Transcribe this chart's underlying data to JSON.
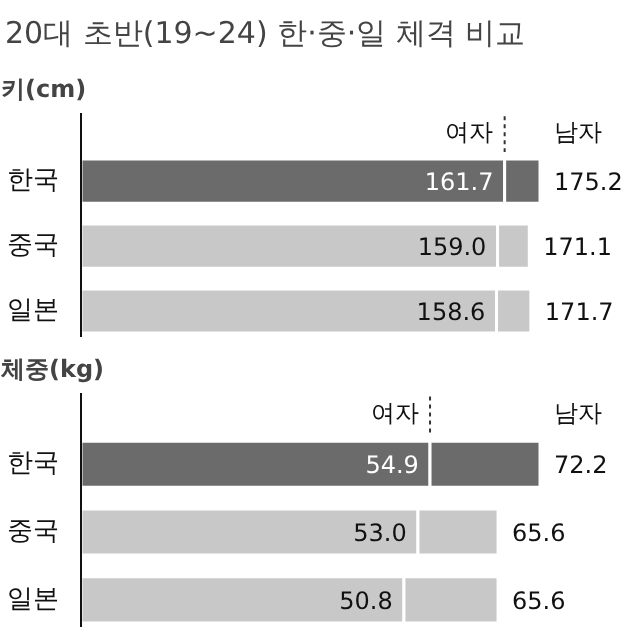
{
  "chart_data": [
    {
      "type": "bar",
      "orientation": "horizontal",
      "stacked": true,
      "title": "20대 초반(19~24) 한·중·일 체격 비교",
      "subtitle": "키(cm)",
      "categories": [
        "한국",
        "중국",
        "일본"
      ],
      "tick_labels": "y",
      "grid": false,
      "series": [
        {
          "name": "여자",
          "colors": [
            "#6b6b6b",
            "#c8c8c8",
            "#c8c8c8"
          ],
          "values": [
            161.7,
            159.0,
            158.6
          ],
          "value_labels": [
            "161.7",
            "159.0",
            "158.6"
          ]
        },
        {
          "name": "남자",
          "colors": [
            "#6b6b6b",
            "#c8c8c8",
            "#c8c8c8"
          ],
          "values": [
            13.5,
            12.1,
            13.1
          ]
        }
      ],
      "annotations": [
        {
          "text": "175.2",
          "x": 175.2,
          "y": "한국"
        },
        {
          "text": "171.1",
          "x": 171.1,
          "y": "중국"
        },
        {
          "text": "171.7",
          "x": 171.7,
          "y": "일본"
        }
      ]
    },
    {
      "type": "bar",
      "orientation": "horizontal",
      "stacked": true,
      "title": "체중(kg)",
      "categories": [
        "한국",
        "중국",
        "일본"
      ],
      "tick_labels": "y",
      "grid": false,
      "series": [
        {
          "name": "여자",
          "colors": [
            "#6b6b6b",
            "#c8c8c8",
            "#c8c8c8"
          ],
          "values": [
            54.9,
            53.0,
            50.8
          ],
          "value_labels": [
            "54.9",
            "53.0",
            "50.8"
          ]
        },
        {
          "name": "남자",
          "colors": [
            "#6b6b6b",
            "#c8c8c8",
            "#c8c8c8"
          ],
          "values": [
            17.3,
            12.6,
            14.8
          ]
        }
      ],
      "annotations": [
        {
          "text": "72.2",
          "x": 72.2,
          "y": "한국"
        },
        {
          "text": "65.6",
          "x": 65.6,
          "y": "중국"
        },
        {
          "text": "65.6",
          "x": 65.6,
          "y": "일본"
        }
      ]
    }
  ]
}
